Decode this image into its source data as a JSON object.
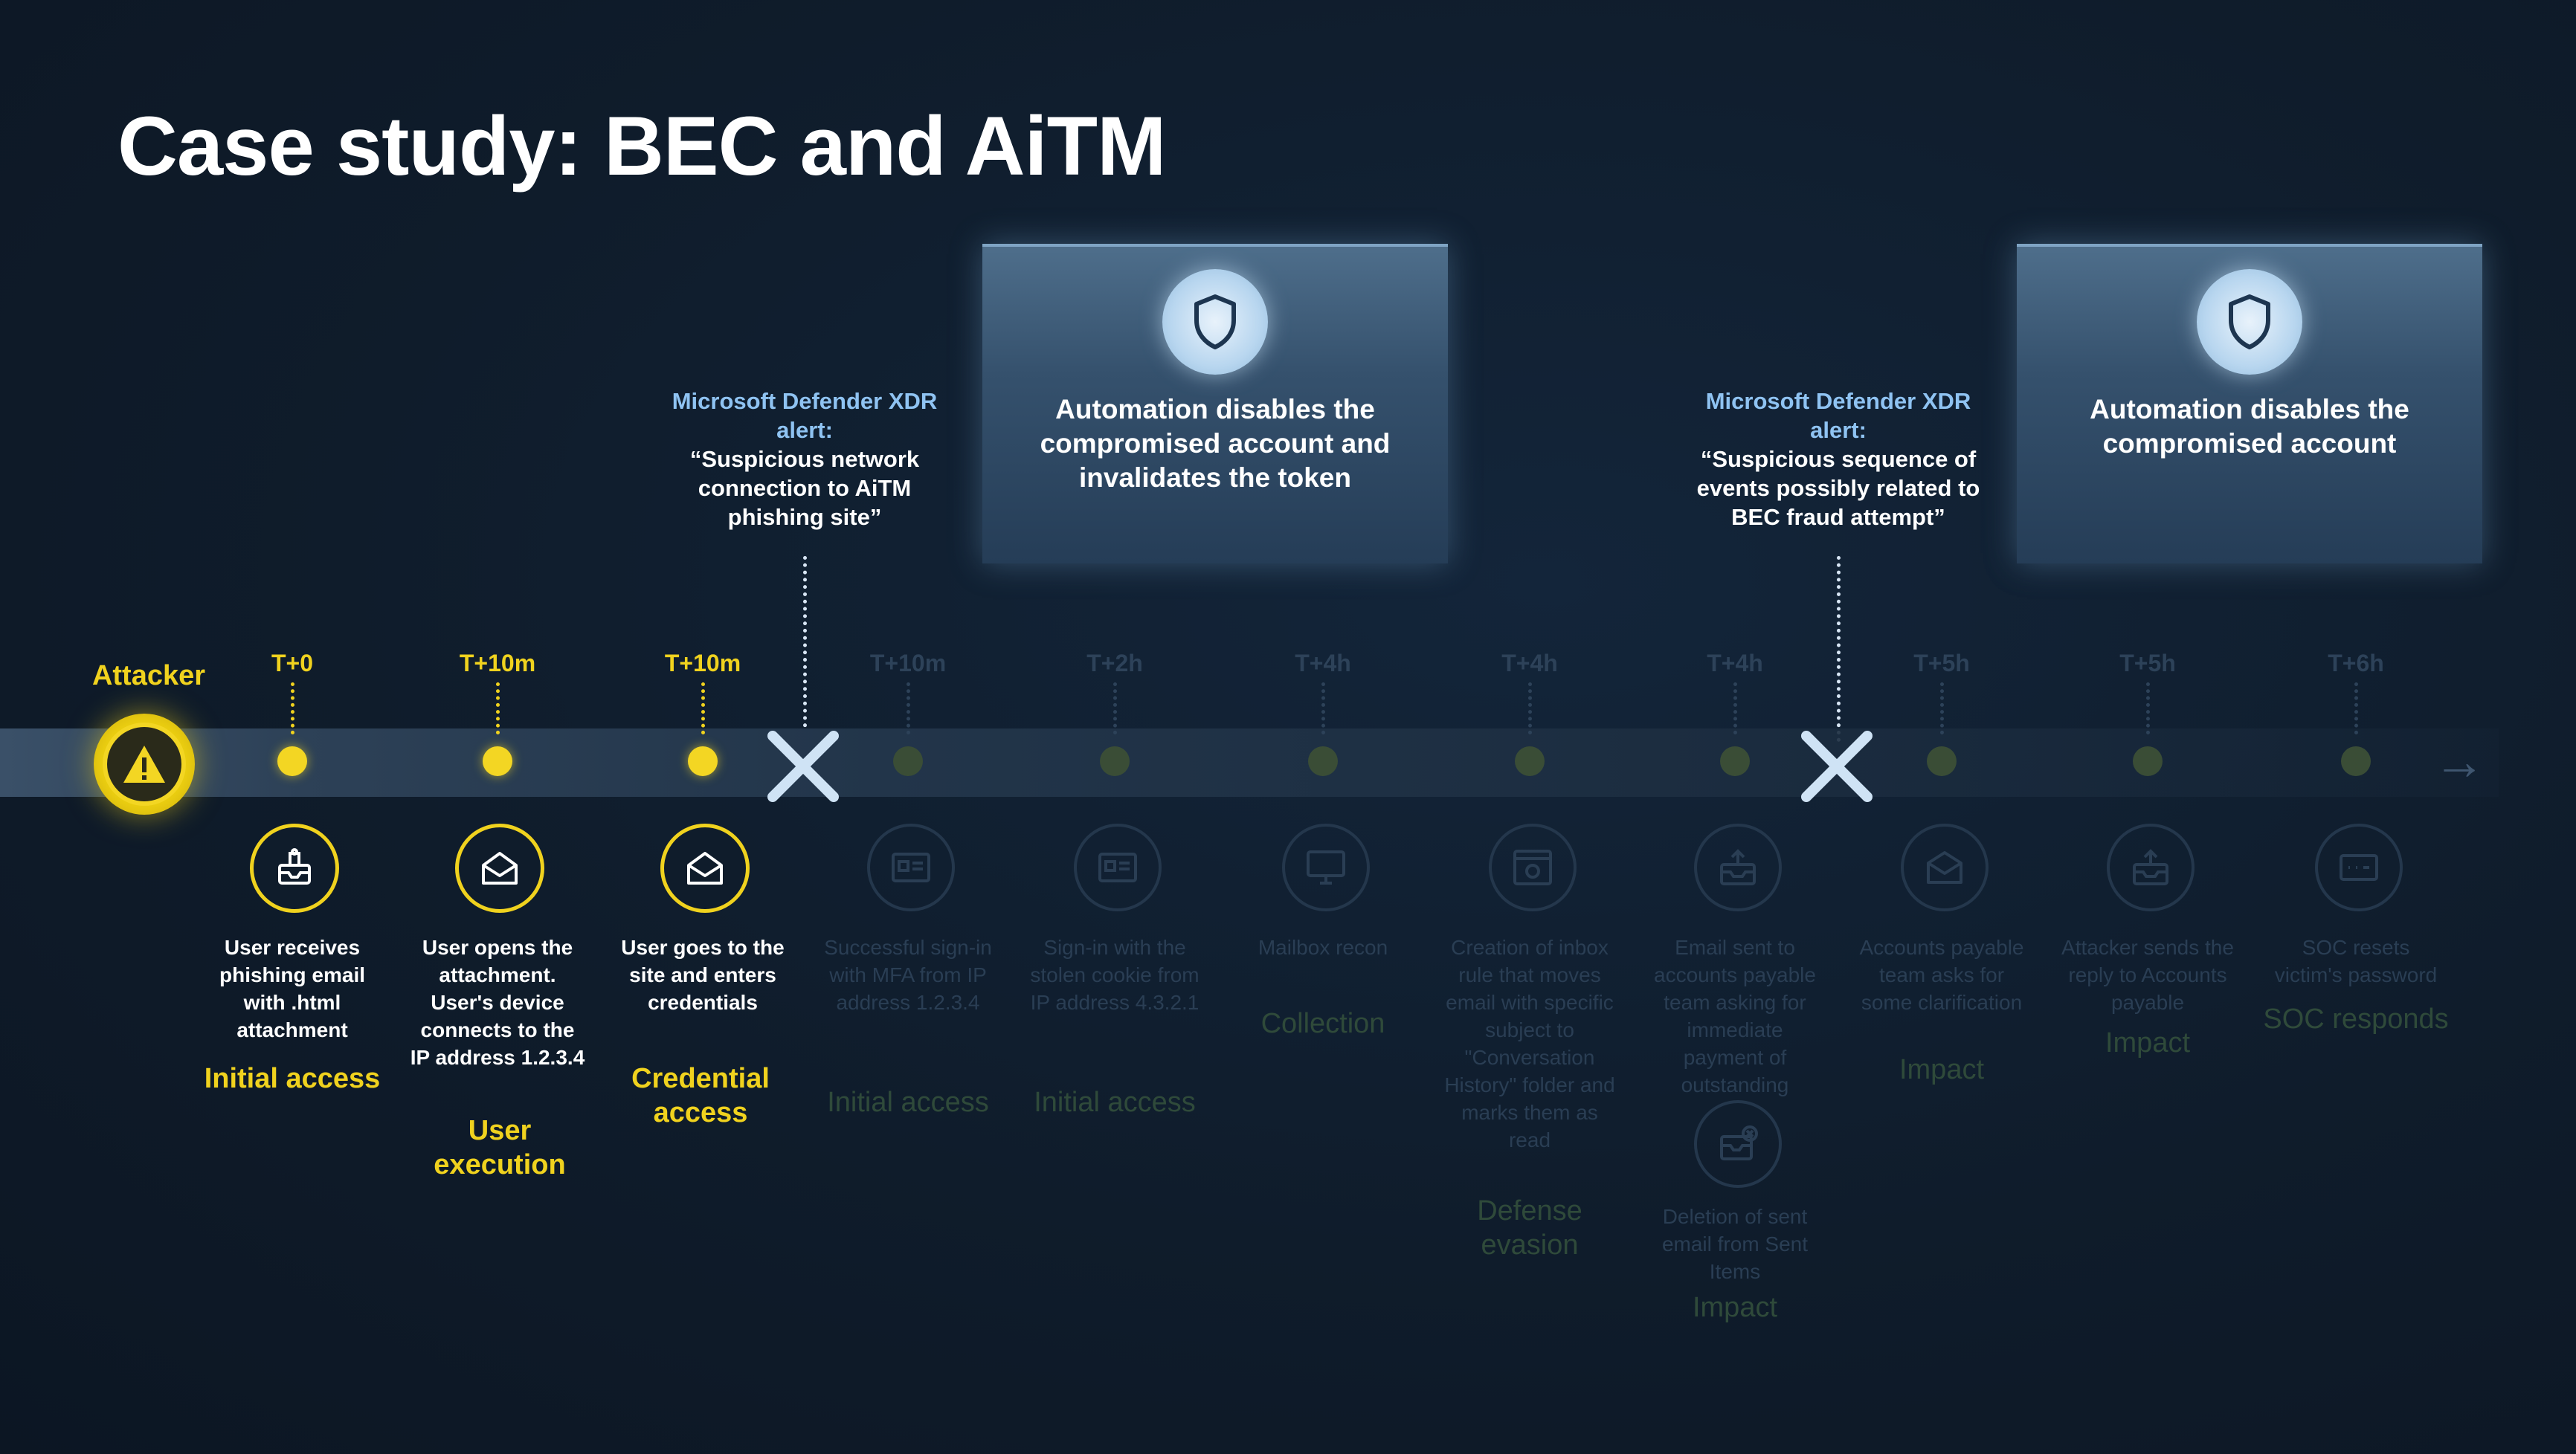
{
  "title": "Case study: BEC and AiTM",
  "attacker": {
    "label": "Attacker",
    "icon": "warning-icon"
  },
  "colors": {
    "active": "#f0d21e",
    "alert_head": "#8fc3f2",
    "band": "#2d4157",
    "background": "#101c2b"
  },
  "active_steps": [
    {
      "time": "T+0",
      "description": "User receives phishing email with .html attachment",
      "tactic": "Initial access",
      "icon": "inbox-attachment-icon"
    },
    {
      "time": "T+10m",
      "description": "User opens the attachment. User's device connects to the IP address 1.2.3.4",
      "tactic": "User execution",
      "icon": "open-envelope-icon"
    },
    {
      "time": "T+10m",
      "description": "User goes to the site and enters credentials",
      "tactic": "Credential access",
      "icon": "open-envelope-icon"
    }
  ],
  "dimmed_steps": [
    {
      "time": "T+10m",
      "description": "Successful sign-in with MFA from IP address 1.2.3.4",
      "tactic": "Initial access",
      "icon": "id-card-icon"
    },
    {
      "time": "T+2h",
      "description": "Sign-in with the stolen cookie from IP address 4.3.2.1",
      "tactic": "Initial access",
      "icon": "id-card-icon"
    },
    {
      "time": "T+4h",
      "description": "Mailbox recon",
      "tactic": "Collection",
      "icon": "monitor-icon"
    },
    {
      "time": "T+4h",
      "description": "Creation of inbox rule that moves email with specific subject to \"Conversation History\" folder and marks them as read",
      "tactic": "Defense evasion",
      "icon": "settings-window-icon"
    },
    {
      "time": "T+4h",
      "description": "Email sent to accounts payable team asking for immediate payment of outstanding",
      "tactic": "Impact",
      "icon": "send-mail-icon",
      "extra_description": "Deletion of sent email from Sent Items",
      "extra_icon": "delete-mail-icon"
    },
    {
      "time": "T+5h",
      "description": "Accounts payable team asks for some clarification",
      "tactic": "Impact",
      "icon": "open-envelope-icon"
    },
    {
      "time": "T+5h",
      "description": "Attacker sends the reply to Accounts payable",
      "tactic": "Impact",
      "icon": "send-mail-icon"
    },
    {
      "time": "T+6h",
      "description": "SOC resets victim's password",
      "tactic": "SOC responds",
      "icon": "password-icon"
    }
  ],
  "alerts": [
    {
      "head": "Microsoft Defender XDR alert:",
      "body": "“Suspicious network connection to AiTM phishing site”"
    },
    {
      "head": "Microsoft Defender XDR alert:",
      "body": "“Suspicious sequence of events possibly related to BEC fraud attempt”"
    }
  ],
  "automation": [
    {
      "text": "Automation disables the compromised account and invalidates the token",
      "icon": "shield-icon"
    },
    {
      "text": "Automation disables the compromised account",
      "icon": "shield-icon"
    }
  ]
}
